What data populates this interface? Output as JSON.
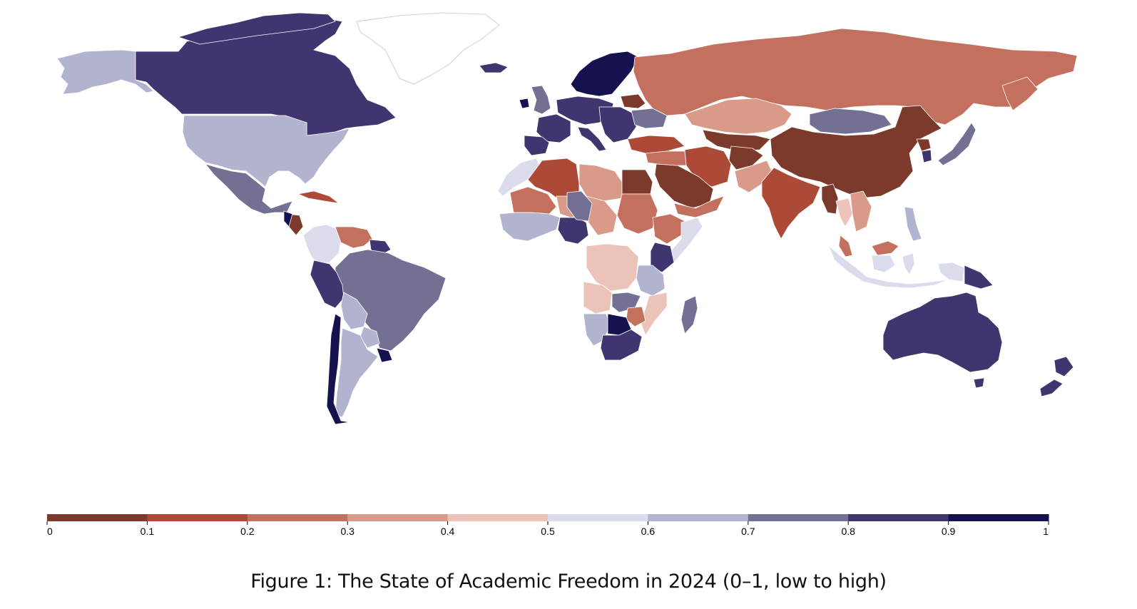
{
  "figure": {
    "caption": "Figure 1: The State of Academic Freedom in 2024 (0–1, low to high)"
  },
  "legend": {
    "min": 0,
    "max": 1,
    "tick_labels": [
      "0",
      "0.1",
      "0.2",
      "0.3",
      "0.4",
      "0.5",
      "0.6",
      "0.7",
      "0.8",
      "0.9",
      "1"
    ],
    "bins": [
      {
        "range": [
          0.0,
          0.1
        ],
        "color": "#7b3a2b"
      },
      {
        "range": [
          0.1,
          0.2
        ],
        "color": "#ad4a37"
      },
      {
        "range": [
          0.2,
          0.3
        ],
        "color": "#c4705e"
      },
      {
        "range": [
          0.3,
          0.4
        ],
        "color": "#d99a8a"
      },
      {
        "range": [
          0.4,
          0.5
        ],
        "color": "#ebc3b9"
      },
      {
        "range": [
          0.5,
          0.6
        ],
        "color": "#dadceb"
      },
      {
        "range": [
          0.6,
          0.7
        ],
        "color": "#b1b3cf"
      },
      {
        "range": [
          0.7,
          0.8
        ],
        "color": "#727194"
      },
      {
        "range": [
          0.8,
          0.9
        ],
        "color": "#41356f"
      },
      {
        "range": [
          0.9,
          1.0
        ],
        "color": "#16114f"
      }
    ]
  },
  "chart_data": {
    "type": "choropleth",
    "value_range": [
      0,
      1
    ],
    "regions": [
      {
        "name": "canada",
        "value": 0.85
      },
      {
        "name": "alaska",
        "value": 0.65
      },
      {
        "name": "united-states",
        "value": 0.65
      },
      {
        "name": "mexico",
        "value": 0.75
      },
      {
        "name": "cuba",
        "value": 0.15
      },
      {
        "name": "nicaragua",
        "value": 0.05
      },
      {
        "name": "costa-rica",
        "value": 0.95
      },
      {
        "name": "colombia",
        "value": 0.55
      },
      {
        "name": "venezuela",
        "value": 0.25
      },
      {
        "name": "guyana",
        "value": 0.85
      },
      {
        "name": "brazil",
        "value": 0.75
      },
      {
        "name": "peru",
        "value": 0.85
      },
      {
        "name": "bolivia",
        "value": 0.65
      },
      {
        "name": "paraguay",
        "value": 0.65
      },
      {
        "name": "chile",
        "value": 0.95
      },
      {
        "name": "argentina",
        "value": 0.65
      },
      {
        "name": "uruguay",
        "value": 0.95
      },
      {
        "name": "greenland",
        "value": null
      },
      {
        "name": "iceland",
        "value": 0.85
      },
      {
        "name": "ireland",
        "value": 0.95
      },
      {
        "name": "united-kingdom",
        "value": 0.75
      },
      {
        "name": "scandinavia",
        "value": 0.95
      },
      {
        "name": "western-europe",
        "value": 0.85
      },
      {
        "name": "france",
        "value": 0.85
      },
      {
        "name": "iberia",
        "value": 0.85
      },
      {
        "name": "italy",
        "value": 0.85
      },
      {
        "name": "eastern-europe",
        "value": 0.85
      },
      {
        "name": "belarus",
        "value": 0.05
      },
      {
        "name": "ukraine",
        "value": 0.75
      },
      {
        "name": "turkey",
        "value": 0.15
      },
      {
        "name": "russia",
        "value": 0.25
      },
      {
        "name": "kazakhstan",
        "value": 0.35
      },
      {
        "name": "central-asia",
        "value": 0.05
      },
      {
        "name": "mongolia",
        "value": 0.75
      },
      {
        "name": "china",
        "value": 0.05
      },
      {
        "name": "north-korea",
        "value": 0.05
      },
      {
        "name": "south-korea",
        "value": 0.85
      },
      {
        "name": "japan",
        "value": 0.75
      },
      {
        "name": "iran",
        "value": 0.15
      },
      {
        "name": "afghanistan",
        "value": 0.05
      },
      {
        "name": "pakistan",
        "value": 0.35
      },
      {
        "name": "india",
        "value": 0.15
      },
      {
        "name": "myanmar",
        "value": 0.05
      },
      {
        "name": "thailand",
        "value": 0.45
      },
      {
        "name": "indochina",
        "value": 0.35
      },
      {
        "name": "malaysia",
        "value": 0.25
      },
      {
        "name": "indonesia",
        "value": 0.55
      },
      {
        "name": "philippines",
        "value": 0.65
      },
      {
        "name": "papua-new-guinea",
        "value": 0.85
      },
      {
        "name": "australia",
        "value": 0.85
      },
      {
        "name": "new-zealand",
        "value": 0.85
      },
      {
        "name": "saudi-arabia",
        "value": 0.05
      },
      {
        "name": "middle-east",
        "value": 0.25
      },
      {
        "name": "morocco",
        "value": 0.55
      },
      {
        "name": "algeria",
        "value": 0.15
      },
      {
        "name": "libya",
        "value": 0.35
      },
      {
        "name": "egypt",
        "value": 0.05
      },
      {
        "name": "sudan",
        "value": 0.25
      },
      {
        "name": "ethiopia",
        "value": 0.25
      },
      {
        "name": "somalia",
        "value": 0.55
      },
      {
        "name": "mali",
        "value": 0.25
      },
      {
        "name": "niger",
        "value": 0.35
      },
      {
        "name": "chad",
        "value": 0.35
      },
      {
        "name": "west-africa",
        "value": 0.65
      },
      {
        "name": "nigeria",
        "value": 0.85
      },
      {
        "name": "central-africa",
        "value": 0.75
      },
      {
        "name": "kenya",
        "value": 0.85
      },
      {
        "name": "tanzania",
        "value": 0.65
      },
      {
        "name": "drc",
        "value": 0.45
      },
      {
        "name": "angola",
        "value": 0.45
      },
      {
        "name": "zambia",
        "value": 0.75
      },
      {
        "name": "mozambique",
        "value": 0.45
      },
      {
        "name": "zimbabwe",
        "value": 0.25
      },
      {
        "name": "namibia",
        "value": 0.65
      },
      {
        "name": "botswana",
        "value": 0.95
      },
      {
        "name": "south-africa",
        "value": 0.85
      },
      {
        "name": "madagascar",
        "value": 0.75
      }
    ]
  }
}
